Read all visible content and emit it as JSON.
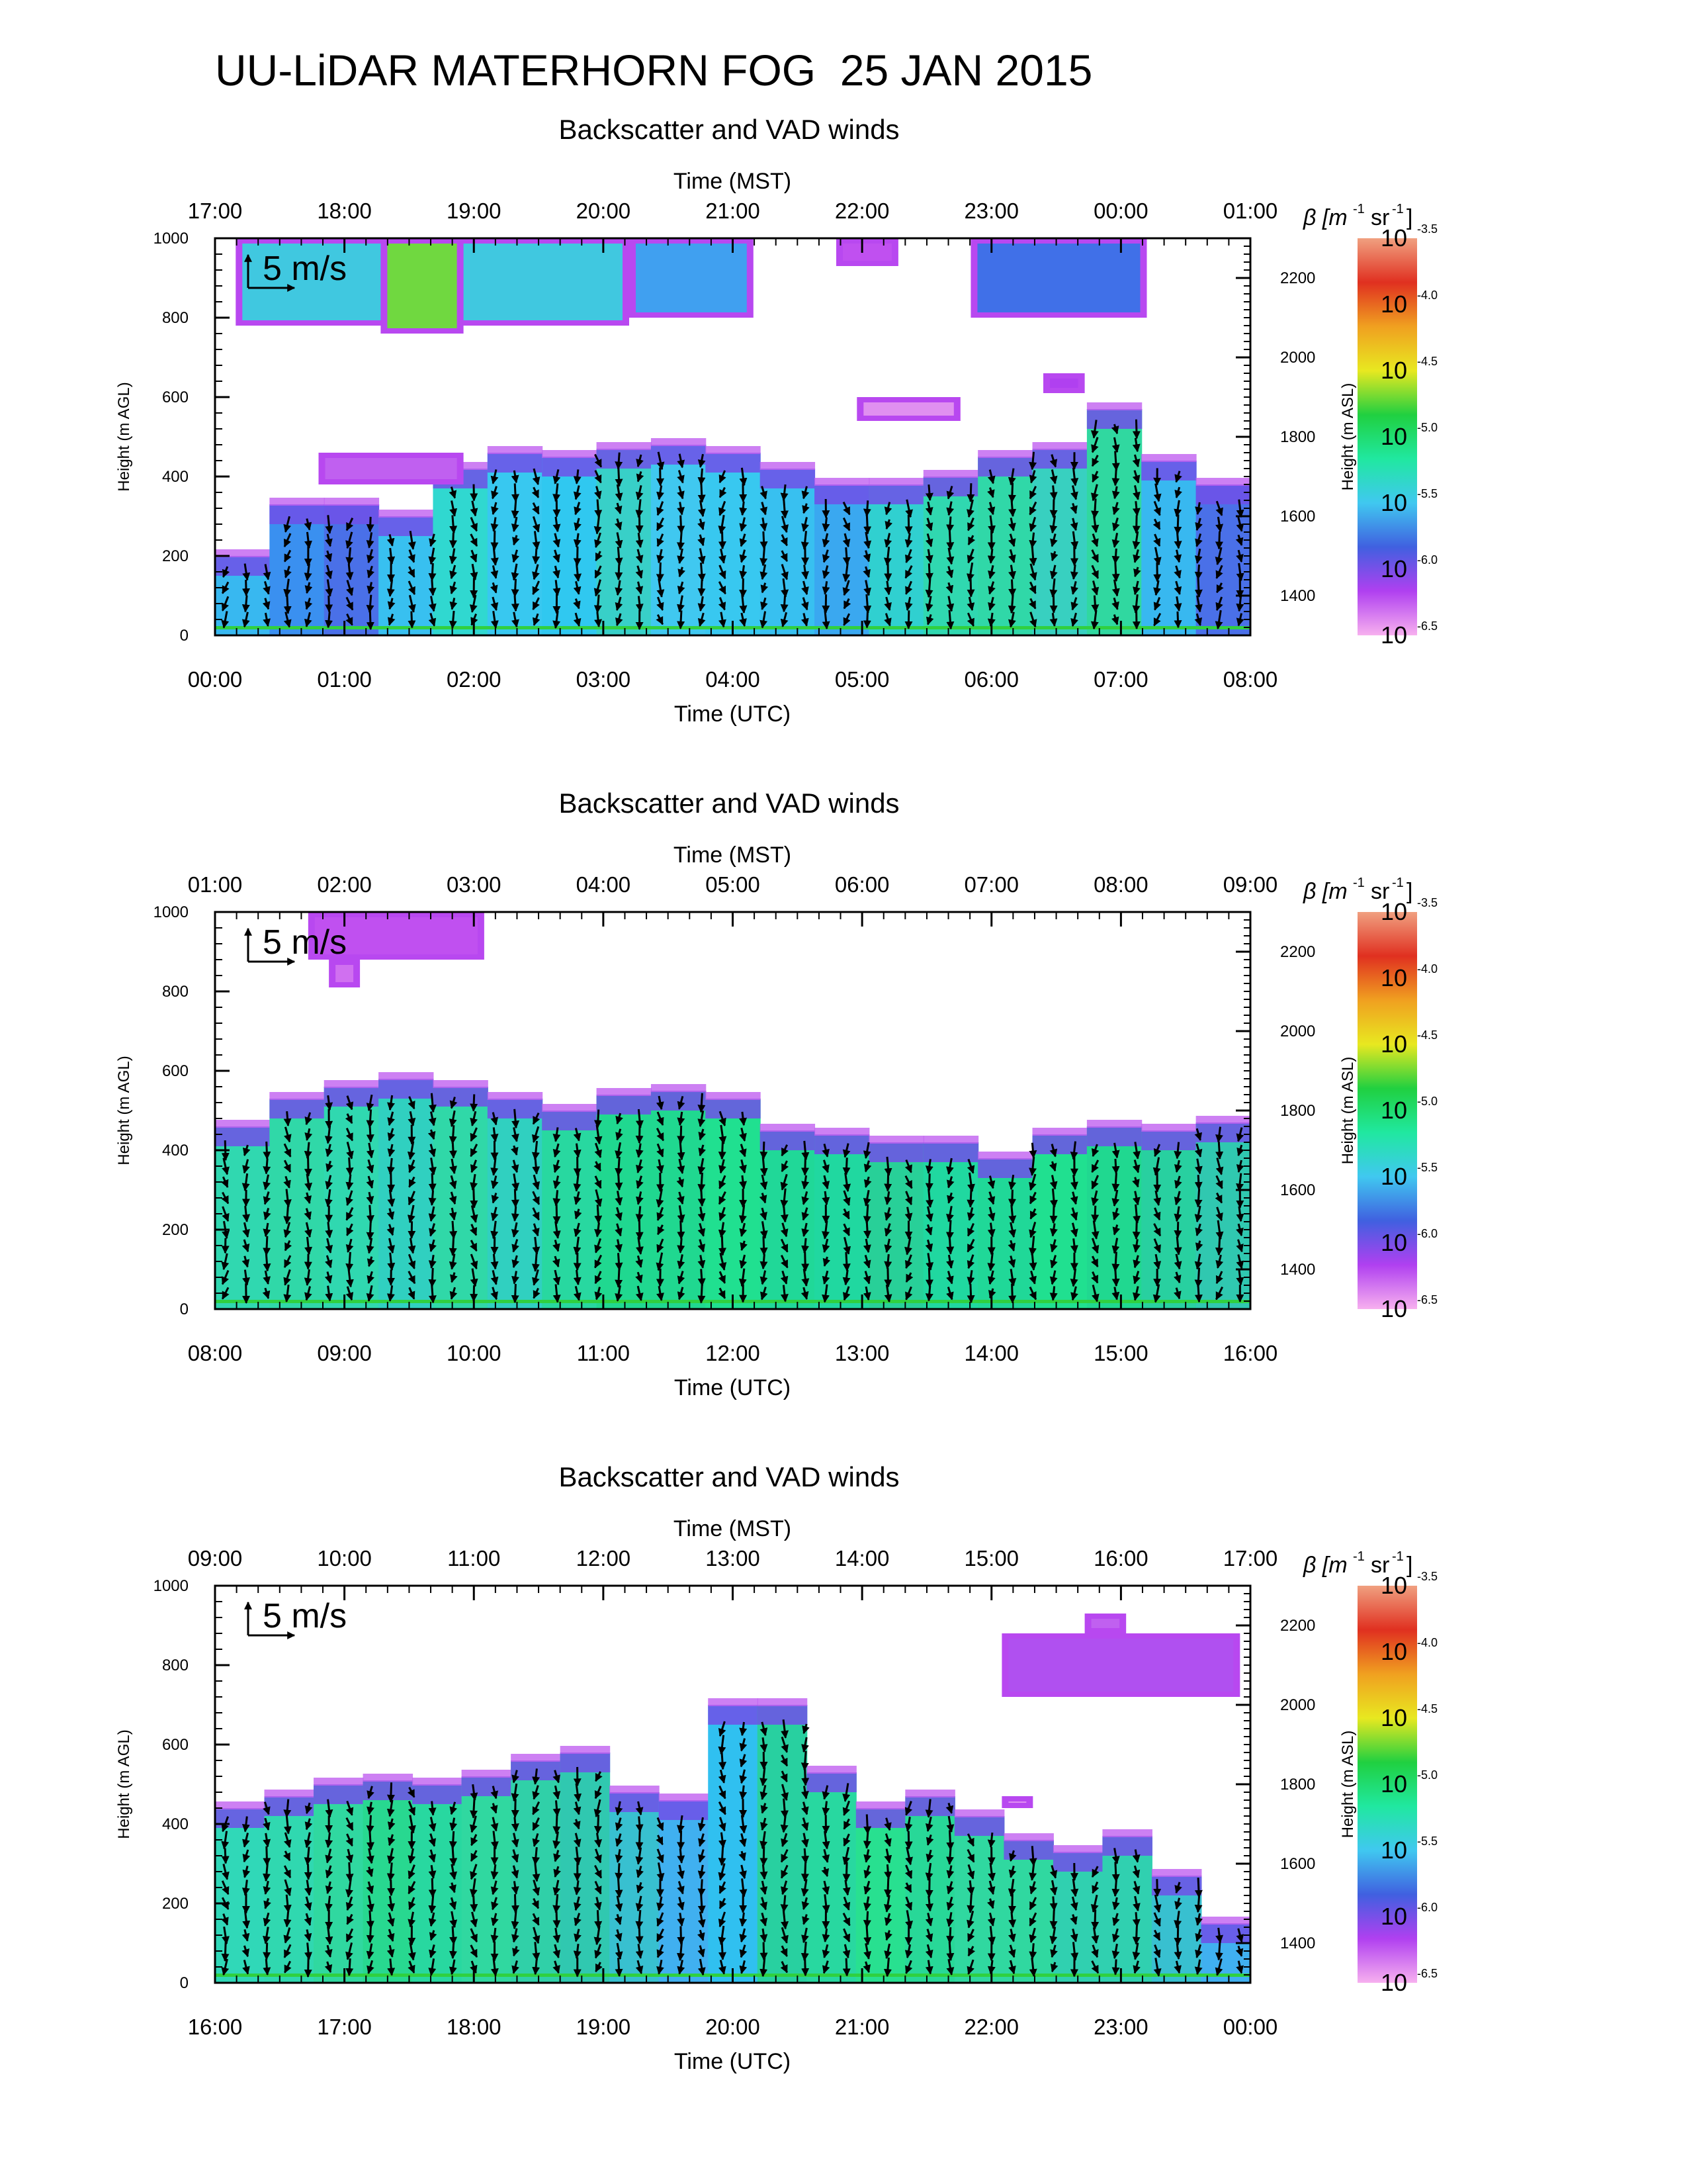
{
  "page_title": "UU-LiDAR MATERHORN FOG  25 JAN 2015",
  "colorscale": {
    "stops": [
      "#f7b0ef",
      "#b040f0",
      "#4060e0",
      "#40c8f0",
      "#20e8a0",
      "#20d040",
      "#e8e820",
      "#f0a020",
      "#e03020",
      "#f0a080"
    ],
    "ticks": [
      {
        "base": "10",
        "exp": "-6.5"
      },
      {
        "base": "10",
        "exp": "-6.0"
      },
      {
        "base": "10",
        "exp": "-5.5"
      },
      {
        "base": "10",
        "exp": "-5.0"
      },
      {
        "base": "10",
        "exp": "-4.5"
      },
      {
        "base": "10",
        "exp": "-4.0"
      },
      {
        "base": "10",
        "exp": "-3.5"
      }
    ]
  },
  "chart_data": [
    {
      "type": "heatmap",
      "title": "Backscatter and VAD winds",
      "top_axis_label": "Time (MST)",
      "top_ticks": [
        "17:00",
        "18:00",
        "19:00",
        "20:00",
        "21:00",
        "22:00",
        "23:00",
        "00:00",
        "01:00"
      ],
      "bottom_axis_label": "Time (UTC)",
      "bottom_ticks": [
        "00:00",
        "01:00",
        "02:00",
        "03:00",
        "04:00",
        "05:00",
        "06:00",
        "07:00",
        "08:00"
      ],
      "ylabel": "Height (m AGL)",
      "yticks": [
        "0",
        "200",
        "400",
        "600",
        "800",
        "1000"
      ],
      "ylim": [
        0,
        1000
      ],
      "right_ylabel": "Height (m ASL)",
      "right_yticks": [
        "1400",
        "1600",
        "1800",
        "2000",
        "2200"
      ],
      "right_ytick_values": [
        1400,
        1600,
        1800,
        2000,
        2200
      ],
      "right_offset": 1300,
      "colorbar_label": "β [m-1 sr-1]",
      "wind_scale_label": "5 m/s",
      "fog_top_m": [
        200,
        330,
        330,
        300,
        420,
        460,
        450,
        470,
        480,
        460,
        420,
        380,
        380,
        400,
        450,
        470,
        570,
        440,
        380
      ],
      "colors": [
        "#38b8f0",
        "#3a90f0",
        "#4a70e8",
        "#38c0f0",
        "#30d8d0",
        "#38c8f0",
        "#30c8f0",
        "#38d0c8",
        "#40c8f0",
        "#38c8f0",
        "#38c0f0",
        "#3aa8f0",
        "#30d0d0",
        "#30d8b0",
        "#30d8a8",
        "#38d0c0",
        "#30d8a0",
        "#38b8f0",
        "#4a70e8"
      ],
      "blobs": [
        {
          "x0": 0.02,
          "x1": 0.4,
          "y0": 780,
          "y1": 1000,
          "color": "#40c8e0"
        },
        {
          "x0": 0.16,
          "x1": 0.24,
          "y0": 760,
          "y1": 1000,
          "color": "#70d840"
        },
        {
          "x0": 0.4,
          "x1": 0.52,
          "y0": 800,
          "y1": 1000,
          "color": "#40a0f0"
        },
        {
          "x0": 0.6,
          "x1": 0.66,
          "y0": 930,
          "y1": 1000,
          "color": "#c050f0"
        },
        {
          "x0": 0.73,
          "x1": 0.9,
          "y0": 800,
          "y1": 1000,
          "color": "#4070e8"
        },
        {
          "x0": 0.1,
          "x1": 0.24,
          "y0": 380,
          "y1": 460,
          "color": "#c060f0"
        },
        {
          "x0": 0.8,
          "x1": 0.84,
          "y0": 610,
          "y1": 660,
          "color": "#b040f0"
        },
        {
          "x0": 0.62,
          "x1": 0.72,
          "y0": 540,
          "y1": 600,
          "color": "#e090f0"
        }
      ]
    },
    {
      "type": "heatmap",
      "title": "Backscatter and VAD winds",
      "top_axis_label": "Time (MST)",
      "top_ticks": [
        "01:00",
        "02:00",
        "03:00",
        "04:00",
        "05:00",
        "06:00",
        "07:00",
        "08:00",
        "09:00"
      ],
      "bottom_axis_label": "Time (UTC)",
      "bottom_ticks": [
        "08:00",
        "09:00",
        "10:00",
        "11:00",
        "12:00",
        "13:00",
        "14:00",
        "15:00",
        "16:00"
      ],
      "ylabel": "Height (m AGL)",
      "yticks": [
        "0",
        "200",
        "400",
        "600",
        "800",
        "1000"
      ],
      "ylim": [
        0,
        1000
      ],
      "right_ylabel": "Height (m ASL)",
      "right_yticks": [
        "1400",
        "1600",
        "1800",
        "2000",
        "2200"
      ],
      "right_ytick_values": [
        1400,
        1600,
        1800,
        2000,
        2200
      ],
      "right_offset": 1300,
      "colorbar_label": "β [m-1 sr-1]",
      "wind_scale_label": "5 m/s",
      "fog_top_m": [
        460,
        530,
        560,
        580,
        560,
        530,
        500,
        540,
        550,
        530,
        450,
        440,
        420,
        420,
        380,
        440,
        460,
        450,
        470
      ],
      "colors": [
        "#30d8b0",
        "#30d8a8",
        "#30d8b0",
        "#30d0c0",
        "#30d8a8",
        "#30d0c0",
        "#28d8a0",
        "#20d890",
        "#20d890",
        "#20e090",
        "#20d898",
        "#20d8a0",
        "#28d098",
        "#20d8a0",
        "#20d898",
        "#20e090",
        "#20d890",
        "#28d0a0",
        "#30c8b0"
      ],
      "blobs": [
        {
          "x0": 0.09,
          "x1": 0.26,
          "y0": 880,
          "y1": 1000,
          "color": "#c050f0"
        },
        {
          "x0": 0.11,
          "x1": 0.14,
          "y0": 810,
          "y1": 880,
          "color": "#d070f0"
        }
      ]
    },
    {
      "type": "heatmap",
      "title": "Backscatter and VAD winds",
      "top_axis_label": "Time (MST)",
      "top_ticks": [
        "09:00",
        "10:00",
        "11:00",
        "12:00",
        "13:00",
        "14:00",
        "15:00",
        "16:00",
        "17:00"
      ],
      "bottom_axis_label": "Time (UTC)",
      "bottom_ticks": [
        "16:00",
        "17:00",
        "18:00",
        "19:00",
        "20:00",
        "21:00",
        "22:00",
        "23:00",
        "00:00"
      ],
      "ylabel": "Height (m AGL)",
      "yticks": [
        "0",
        "200",
        "400",
        "600",
        "800",
        "1000"
      ],
      "ylim": [
        0,
        1000
      ],
      "right_ylabel": "Height (m ASL)",
      "right_yticks": [
        "1400",
        "1600",
        "1800",
        "2000",
        "2200"
      ],
      "right_ytick_values": [
        1400,
        1600,
        1800,
        2000,
        2200
      ],
      "right_offset": 1300,
      "colorbar_label": "β [m-1 sr-1]",
      "wind_scale_label": "5 m/s",
      "fog_top_m": [
        440,
        470,
        500,
        510,
        500,
        520,
        560,
        580,
        480,
        460,
        700,
        700,
        530,
        440,
        470,
        420,
        360,
        330,
        370,
        270,
        150
      ],
      "colors": [
        "#30d8b8",
        "#30d8b0",
        "#30d8a0",
        "#28d890",
        "#28d8a0",
        "#30d8a0",
        "#30d0a8",
        "#30c8b0",
        "#38c0d0",
        "#40b0f0",
        "#30c0f0",
        "#28d0a0",
        "#28d8a0",
        "#28e090",
        "#28d898",
        "#30d8a0",
        "#30d8a0",
        "#30d0b0",
        "#30d0b0",
        "#38c0d0",
        "#40b0f0"
      ],
      "blobs": [
        {
          "x0": 0.76,
          "x1": 0.99,
          "y0": 720,
          "y1": 880,
          "color": "#b050f0"
        },
        {
          "x0": 0.84,
          "x1": 0.88,
          "y0": 880,
          "y1": 930,
          "color": "#c060f0"
        },
        {
          "x0": 0.76,
          "x1": 0.79,
          "y0": 440,
          "y1": 470,
          "color": "#e090f0"
        }
      ]
    }
  ]
}
